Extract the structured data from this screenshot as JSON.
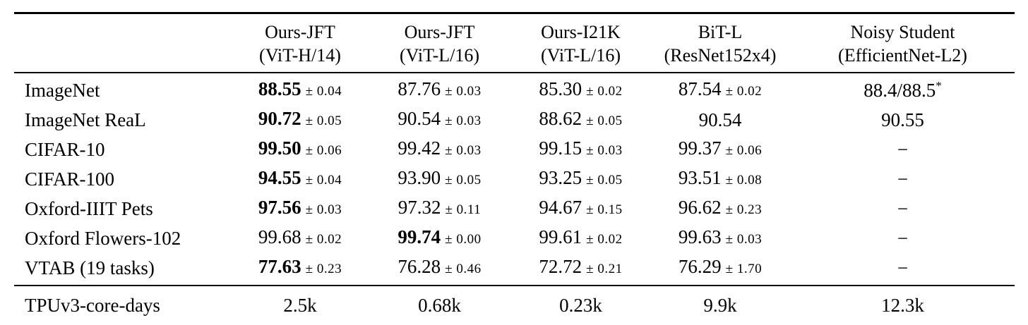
{
  "colors": {
    "text": "#000000",
    "background": "#ffffff"
  },
  "table": {
    "columns": [
      {
        "line1": "",
        "line2": ""
      },
      {
        "line1": "Ours-JFT",
        "line2": "(ViT-H/14)"
      },
      {
        "line1": "Ours-JFT",
        "line2": "(ViT-L/16)"
      },
      {
        "line1": "Ours-I21K",
        "line2": "(ViT-L/16)"
      },
      {
        "line1": "BiT-L",
        "line2": "(ResNet152x4)"
      },
      {
        "line1": "Noisy Student",
        "line2": "(EfficientNet-L2)"
      }
    ],
    "rows": [
      {
        "label": "ImageNet",
        "cells": [
          {
            "value": "88.55",
            "pm": "± 0.04",
            "bold": true
          },
          {
            "value": "87.76",
            "pm": "± 0.03"
          },
          {
            "value": "85.30",
            "pm": "± 0.02"
          },
          {
            "value": "87.54",
            "pm": "± 0.02"
          },
          {
            "value": "88.4/88.5",
            "sup": "*"
          }
        ]
      },
      {
        "label": "ImageNet ReaL",
        "cells": [
          {
            "value": "90.72",
            "pm": "± 0.05",
            "bold": true
          },
          {
            "value": "90.54",
            "pm": "± 0.03"
          },
          {
            "value": "88.62",
            "pm": "± 0.05"
          },
          {
            "value": "90.54"
          },
          {
            "value": "90.55"
          }
        ]
      },
      {
        "label": "CIFAR-10",
        "cells": [
          {
            "value": "99.50",
            "pm": "± 0.06",
            "bold": true
          },
          {
            "value": "99.42",
            "pm": "± 0.03"
          },
          {
            "value": "99.15",
            "pm": "± 0.03"
          },
          {
            "value": "99.37",
            "pm": "± 0.06"
          },
          {
            "value": "−"
          }
        ]
      },
      {
        "label": "CIFAR-100",
        "cells": [
          {
            "value": "94.55",
            "pm": "± 0.04",
            "bold": true
          },
          {
            "value": "93.90",
            "pm": "± 0.05"
          },
          {
            "value": "93.25",
            "pm": "± 0.05"
          },
          {
            "value": "93.51",
            "pm": "± 0.08"
          },
          {
            "value": "−"
          }
        ]
      },
      {
        "label": "Oxford-IIIT Pets",
        "cells": [
          {
            "value": "97.56",
            "pm": "± 0.03",
            "bold": true
          },
          {
            "value": "97.32",
            "pm": "± 0.11"
          },
          {
            "value": "94.67",
            "pm": "± 0.15"
          },
          {
            "value": "96.62",
            "pm": "± 0.23"
          },
          {
            "value": "−"
          }
        ]
      },
      {
        "label": "Oxford Flowers-102",
        "cells": [
          {
            "value": "99.68",
            "pm": "± 0.02"
          },
          {
            "value": "99.74",
            "pm": "± 0.00",
            "bold": true
          },
          {
            "value": "99.61",
            "pm": "± 0.02"
          },
          {
            "value": "99.63",
            "pm": "± 0.03"
          },
          {
            "value": "−"
          }
        ]
      },
      {
        "label": "VTAB (19 tasks)",
        "cells": [
          {
            "value": "77.63",
            "pm": "± 0.23",
            "bold": true
          },
          {
            "value": "76.28",
            "pm": "± 0.46"
          },
          {
            "value": "72.72",
            "pm": "± 0.21"
          },
          {
            "value": "76.29",
            "pm": "± 1.70"
          },
          {
            "value": "−"
          }
        ]
      }
    ],
    "footer": {
      "label": "TPUv3-core-days",
      "cells": [
        "2.5k",
        "0.68k",
        "0.23k",
        "9.9k",
        "12.3k"
      ]
    }
  }
}
